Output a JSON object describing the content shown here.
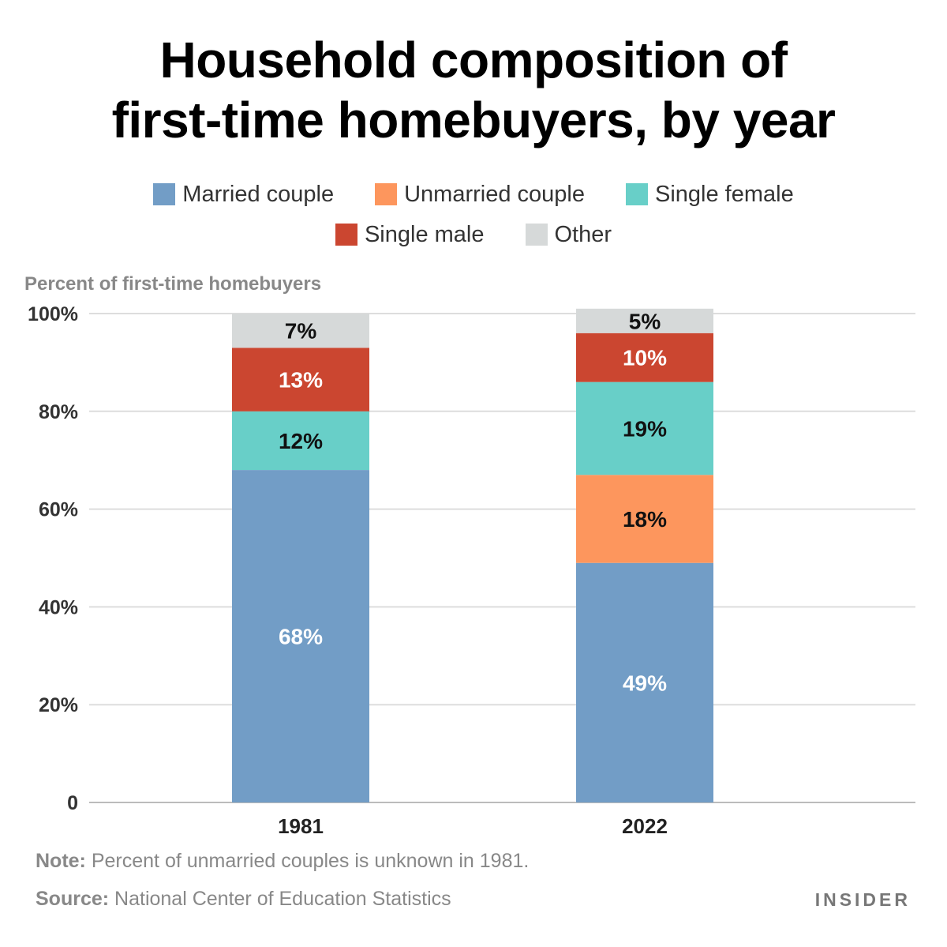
{
  "header": {
    "title_line1": "Household composition of",
    "title_line2": "first-time homebuyers, by year"
  },
  "legend": {
    "rows": [
      [
        {
          "label": "Married couple",
          "color": "#729dc6"
        },
        {
          "label": "Unmarried couple",
          "color": "#fd965d"
        },
        {
          "label": "Single female",
          "color": "#68cfc8"
        }
      ],
      [
        {
          "label": "Single male",
          "color": "#cb4630"
        },
        {
          "label": "Other",
          "color": "#d6d9d9"
        }
      ]
    ]
  },
  "footer": {
    "note_label": "Note:",
    "note_text": " Percent of unmarried couples is unknown in 1981.",
    "source_label": "Source:",
    "source_text": " National Center of Education Statistics",
    "brand": "INSIDER"
  },
  "chart_data": {
    "type": "bar",
    "stacked": true,
    "title": "Household composition of first-time homebuyers, by year",
    "ylabel": "Percent of first-time homebuyers",
    "xlabel": "",
    "categories": [
      "1981",
      "2022"
    ],
    "ylim": [
      0,
      100
    ],
    "yticks": [
      0,
      20,
      40,
      60,
      80,
      100
    ],
    "ytick_labels": [
      "0",
      "20%",
      "40%",
      "60%",
      "80%",
      "100%"
    ],
    "grid": true,
    "legend_position": "top",
    "series": [
      {
        "name": "Married couple",
        "color": "#729dc6",
        "values": [
          68,
          49
        ],
        "labels": [
          "68%",
          "49%"
        ],
        "label_color": "#ffffff"
      },
      {
        "name": "Unmarried couple",
        "color": "#fd965d",
        "values": [
          null,
          18
        ],
        "labels": [
          "",
          "18%"
        ],
        "label_color": "#111111"
      },
      {
        "name": "Single female",
        "color": "#68cfc8",
        "values": [
          12,
          19
        ],
        "labels": [
          "12%",
          "19%"
        ],
        "label_color": "#111111"
      },
      {
        "name": "Single male",
        "color": "#cb4630",
        "values": [
          13,
          10
        ],
        "labels": [
          "13%",
          "10%"
        ],
        "label_color": "#ffffff"
      },
      {
        "name": "Other",
        "color": "#d6d9d9",
        "values": [
          7,
          5
        ],
        "labels": [
          "7%",
          "5%"
        ],
        "label_color": "#111111"
      }
    ]
  }
}
